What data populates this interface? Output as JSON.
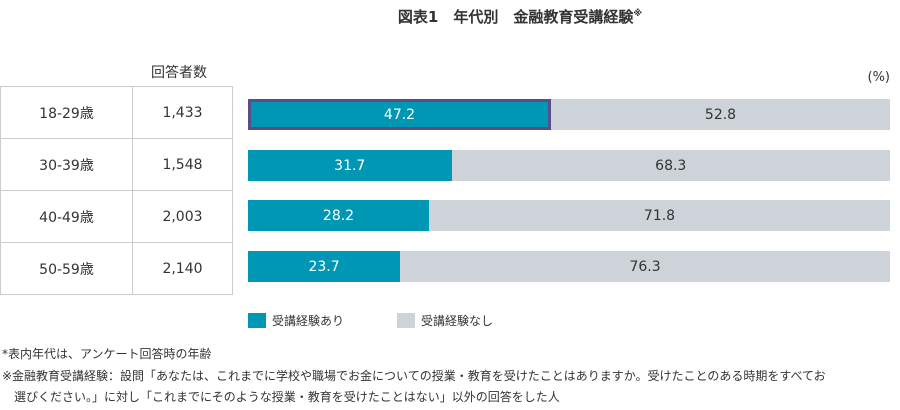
{
  "chart_data": {
    "type": "bar",
    "stacked": true,
    "orientation": "horizontal",
    "title": "図表1　年代別　金融教育受講経験",
    "title_mark": "※",
    "unit": "(%)",
    "count_header": "回答者数",
    "categories": [
      "18-29歳",
      "30-39歳",
      "40-49歳",
      "50-59歳"
    ],
    "counts": [
      "1,433",
      "1,548",
      "2,003",
      "2,140"
    ],
    "series": [
      {
        "name": "受講経験あり",
        "color": "#0097b4",
        "values": [
          47.2,
          31.7,
          28.2,
          23.7
        ]
      },
      {
        "name": "受講経験なし",
        "color": "#cdd3d9",
        "values": [
          52.8,
          68.3,
          71.8,
          76.3
        ]
      }
    ],
    "xlim": [
      0,
      100
    ],
    "highlight_color": "#5b4d8a",
    "legend": "bottom"
  },
  "notes": [
    "*表内年代は、アンケート回答時の年齢",
    "※金融教育受講経験：設問「あなたは、これまでに学校や職場でお金についての授業・教育を受けたことはありますか。受けたことのある時期をすべてお",
    "　選びください。」に対し「これまでにそのような授業・教育を受けたことはない」以外の回答をした人"
  ]
}
